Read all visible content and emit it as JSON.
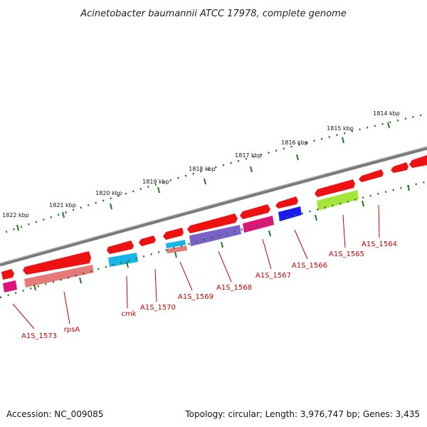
{
  "title": "Acinetobacter baumannii ATCC 17978, complete genome",
  "footer": {
    "accession": "Accession: NC_009085",
    "topology": "Topology: circular; Length: 3,976,747 bp; Genes: 3,435"
  },
  "colors": {
    "background": "#ffffff",
    "backbone": "#7a7a7a",
    "tick": "#1f7a1f",
    "gene_label": "#cc0000",
    "cds": "#ee1111",
    "rna_magenta": "#e0157a",
    "rna_salmon": "#e67a7a",
    "rna_cyan": "#17b4ea",
    "rna_purple": "#7b61c9",
    "rna_blue": "#1a1aee",
    "rna_lime": "#a6e63a"
  },
  "kbp_labels": [
    "1822 kbp",
    "1821 kbp",
    "1820 kbp",
    "1819 kbp",
    "1818 kbp",
    "1817 kbp",
    "1816 kbp",
    "1815 kbp",
    "1814 kbp"
  ],
  "gene_labels": [
    "A1S_1573",
    "rpsA",
    "cmk",
    "A1S_1570",
    "A1S_1569",
    "A1S_1568",
    "A1S_1567",
    "A1S_1566",
    "A1S_1565",
    "A1S_1564"
  ]
}
